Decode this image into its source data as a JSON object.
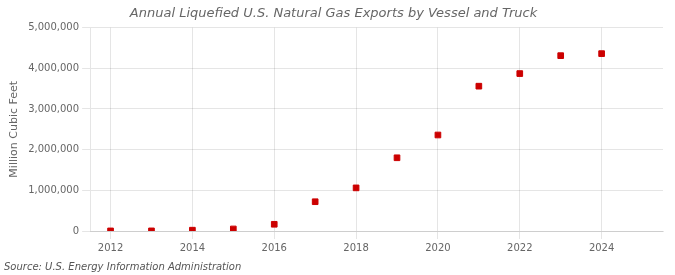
{
  "chart_data": {
    "type": "scatter",
    "title": "Annual Liquefied U.S. Natural Gas Exports by Vessel and Truck",
    "y_label": "Million Cubic Feet",
    "annotation": "Source: U.S. Energy Information Administration",
    "x": [
      2012,
      2013,
      2014,
      2015,
      2016,
      2017,
      2018,
      2019,
      2020,
      2021,
      2022,
      2023,
      2024
    ],
    "values": [
      2000,
      3000,
      20000,
      50000,
      165000,
      720000,
      1060000,
      1800000,
      2360000,
      3560000,
      3870000,
      4310000,
      4360000
    ],
    "color": "#cc0000",
    "marker": "square",
    "xlim": [
      2011.5,
      2025.5
    ],
    "xticks": [
      2012,
      2014,
      2016,
      2018,
      2020,
      2022,
      2024
    ],
    "ylim": [
      0,
      5000000
    ],
    "yticks": [
      0,
      {
        "value": 1000000,
        "label": "1,000,000"
      },
      {
        "value": 2000000,
        "label": "2,000,000"
      },
      {
        "value": 3000000,
        "label": "3,000,000"
      },
      {
        "value": 4000000,
        "label": "4,000,000"
      },
      {
        "value": 5000000,
        "label": "5,000,000"
      }
    ],
    "grid": true
  }
}
